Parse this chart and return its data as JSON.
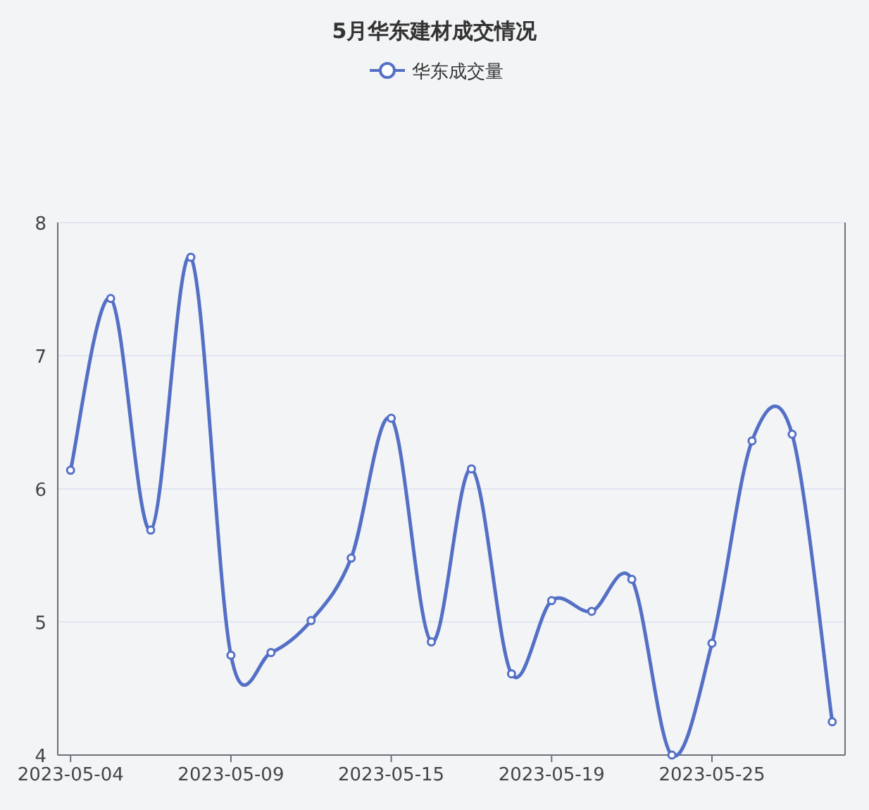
{
  "chart_data": {
    "type": "line",
    "title": "5月华东建材成交情况",
    "categories": [
      "2023-05-04",
      null,
      null,
      null,
      "2023-05-09",
      null,
      null,
      null,
      "2023-05-15",
      null,
      null,
      null,
      "2023-05-19",
      null,
      null,
      null,
      "2023-05-25",
      null,
      null,
      null
    ],
    "series": [
      {
        "name": "华东成交量",
        "color": "#5470c6",
        "values": [
          6.14,
          7.43,
          5.69,
          7.74,
          4.75,
          4.77,
          5.01,
          5.48,
          6.53,
          4.85,
          6.15,
          4.61,
          5.16,
          5.08,
          5.32,
          4.0,
          4.84,
          6.36,
          6.41,
          4.25
        ]
      }
    ],
    "ylim": [
      4,
      8
    ],
    "yticks": [
      4,
      5,
      6,
      7,
      8
    ],
    "grid": "y",
    "legend": "top",
    "marker": "circle",
    "line_style": "solid"
  }
}
